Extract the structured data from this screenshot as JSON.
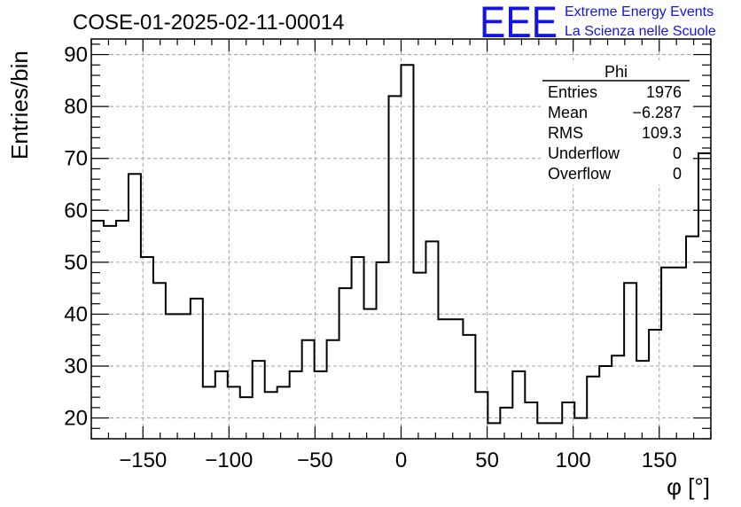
{
  "chart_data": {
    "type": "histogram",
    "title": "COSE-01-2025-02-11-00014",
    "xlabel": "φ [°]",
    "ylabel": "Entries/bin",
    "xlim": [
      -180,
      180
    ],
    "ylim": [
      16,
      93
    ],
    "bin_width": 7.2,
    "x_ticks": [
      -150,
      -100,
      -50,
      0,
      50,
      100,
      150
    ],
    "x_tick_labels": [
      "−150",
      "−100",
      "−50",
      "0",
      "50",
      "100",
      "150"
    ],
    "y_ticks": [
      20,
      30,
      40,
      50,
      60,
      70,
      80,
      90
    ],
    "y_tick_labels": [
      "20",
      "30",
      "40",
      "50",
      "60",
      "70",
      "80",
      "90"
    ],
    "grid": true,
    "values": [
      58,
      57,
      58,
      67,
      51,
      46,
      40,
      40,
      43,
      26,
      29,
      26,
      24,
      31,
      25,
      26,
      29,
      35,
      29,
      35,
      45,
      51,
      41,
      50,
      82,
      88,
      48,
      54,
      39,
      39,
      36,
      25,
      19,
      22,
      29,
      23,
      19,
      19,
      23,
      20,
      28,
      30,
      32,
      46,
      31,
      37,
      49,
      49,
      55,
      71
    ],
    "stats_box": {
      "name": "Phi",
      "rows": [
        {
          "label": "Entries",
          "value": "1976"
        },
        {
          "label": "Mean",
          "value": "−6.287"
        },
        {
          "label": "RMS",
          "value": "109.3"
        },
        {
          "label": "Underflow",
          "value": "0"
        },
        {
          "label": "Overflow",
          "value": "0"
        }
      ]
    }
  },
  "logo": {
    "letters": "EEE",
    "line1": "Extreme Energy Events",
    "line2": "La Scienza nelle Scuole"
  },
  "colors": {
    "line": "#000000",
    "logo": "#1414e6",
    "grid": "#a0a0a0"
  }
}
